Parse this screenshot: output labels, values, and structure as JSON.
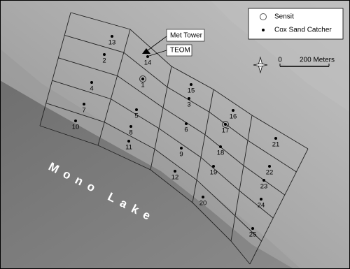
{
  "legend": [
    "Sensit",
    "Cox Sand Catcher"
  ],
  "callouts": [
    "Met Tower",
    "TEOM"
  ],
  "scale": {
    "start": "0",
    "end": "200 Meters"
  },
  "lake_label": "Mono Lake",
  "sites": [
    "13",
    "2",
    "14",
    "1",
    "4",
    "15",
    "3",
    "5",
    "7",
    "16",
    "10",
    "6",
    "17",
    "8",
    "11",
    "21",
    "18",
    "9",
    "22",
    "19",
    "12",
    "23",
    "20",
    "24",
    "25"
  ]
}
